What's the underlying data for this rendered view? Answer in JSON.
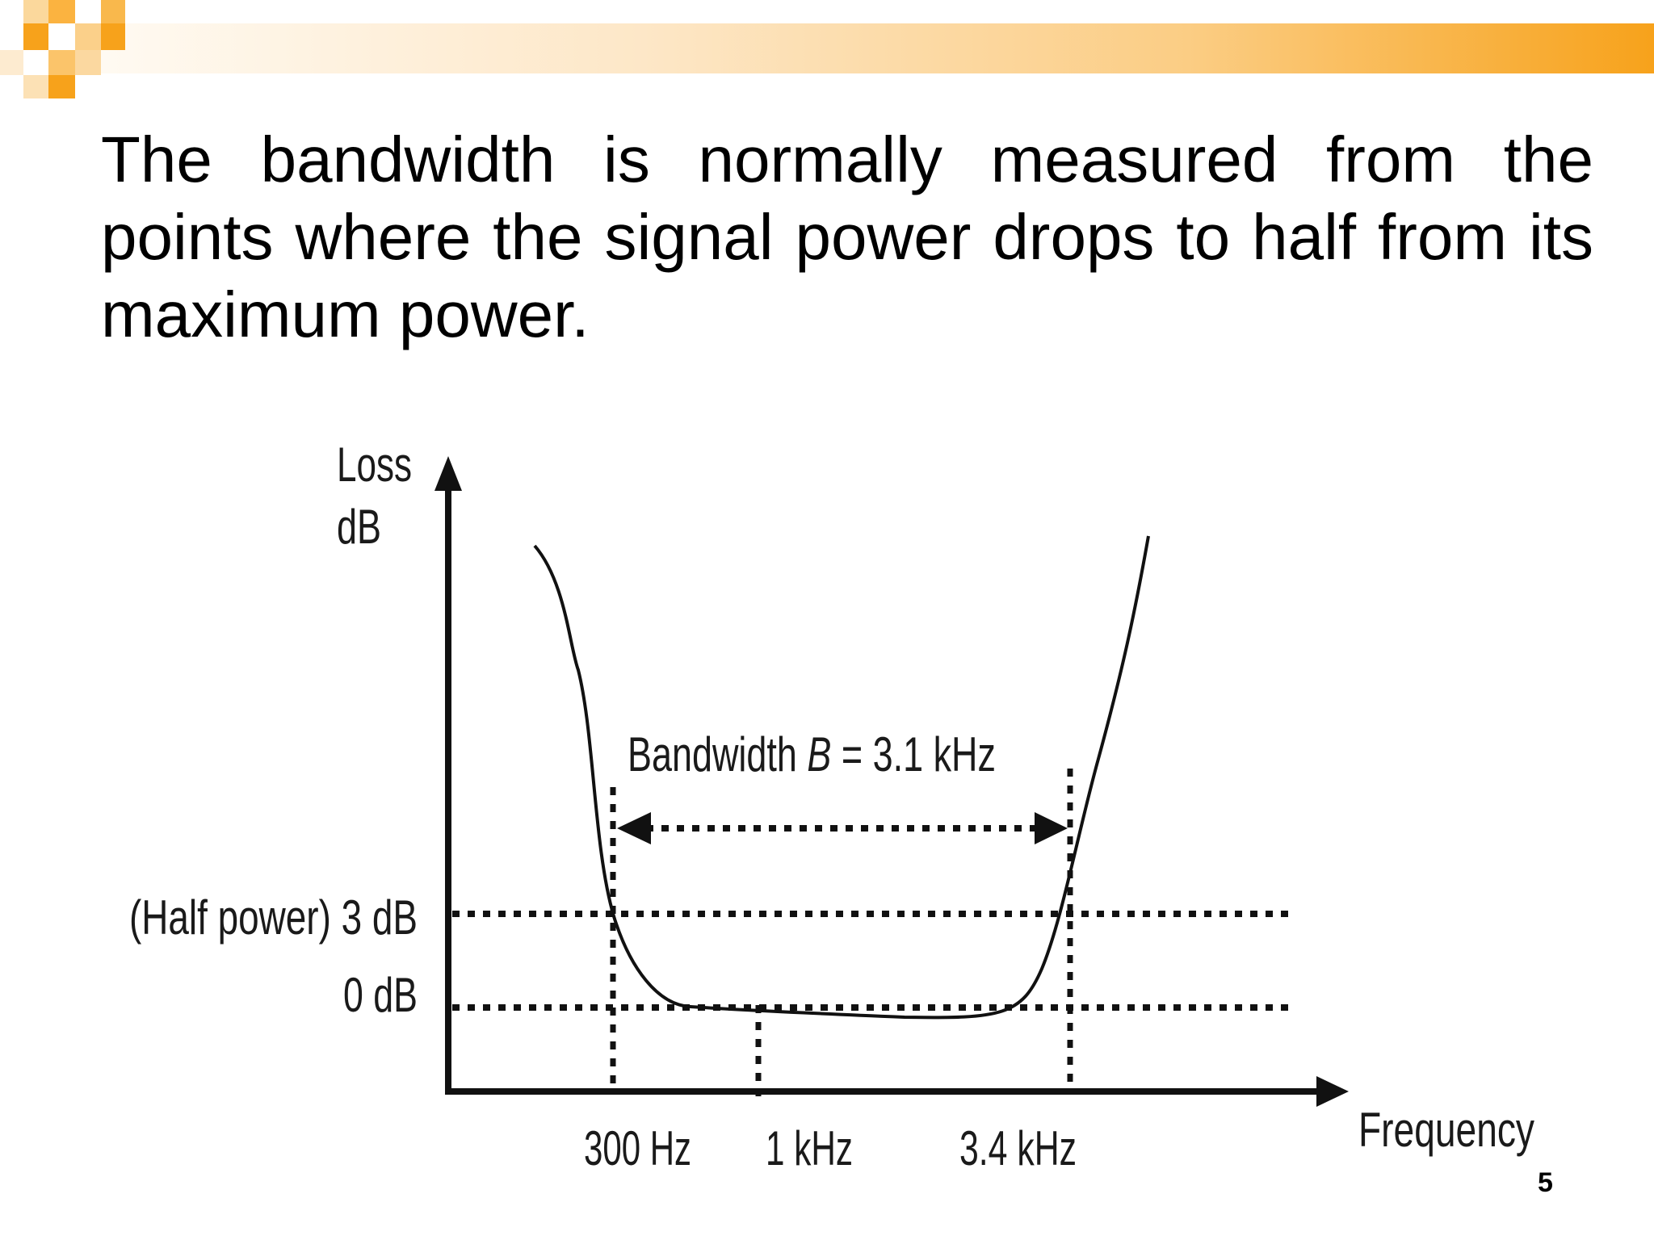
{
  "slide": {
    "paragraph": "The bandwidth is normally measured from the points where the signal power drops to half from its maximum power.",
    "page_number": "5"
  },
  "diagram": {
    "y_axis_label_line1": "Loss",
    "y_axis_label_line2": "dB",
    "x_axis_label": "Frequency",
    "half_power_label": "(Half power) 3 dB",
    "zero_db_label": "0 dB",
    "bandwidth_prefix": "Bandwidth ",
    "bandwidth_symbol": "B",
    "bandwidth_value": " = 3.1 kHz",
    "freq_ticks": [
      "300 Hz",
      "1 kHz",
      "3.4 kHz"
    ]
  },
  "colors": {
    "accent_orange": "#f7a21b",
    "line": "#111111"
  }
}
